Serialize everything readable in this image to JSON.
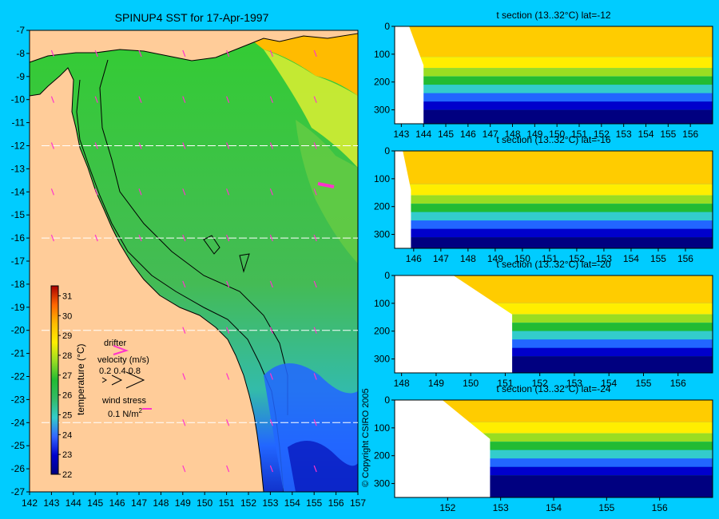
{
  "colors": {
    "background": "#00ccff",
    "land": "#ffcc99",
    "wind_arrow": "#ff33cc",
    "coast": "#000000"
  },
  "main_map": {
    "title": "SPINUP4 SST for 17-Apr-1997",
    "x_ticks": [
      "142",
      "143",
      "144",
      "145",
      "146",
      "147",
      "148",
      "149",
      "150",
      "151",
      "152",
      "153",
      "154",
      "155",
      "156",
      "157"
    ],
    "y_ticks": [
      "-7",
      "-8",
      "-9",
      "-10",
      "-11",
      "-12",
      "-13",
      "-14",
      "-15",
      "-16",
      "-17",
      "-18",
      "-19",
      "-20",
      "-21",
      "-22",
      "-23",
      "-24",
      "-25",
      "-26",
      "-27"
    ],
    "section_lats": [
      -12,
      -16,
      -20,
      -24
    ]
  },
  "colorbar": {
    "label": "temperature (°C)",
    "ticks": [
      "22",
      "23",
      "24",
      "25",
      "26",
      "27",
      "28",
      "29",
      "30",
      "31"
    ]
  },
  "legend": {
    "drifter": "drifter",
    "velocity": "velocity (m/s)",
    "velocity_values": "0.2  0.4  0.8",
    "wind_stress": "wind stress",
    "wind_units_prefix": "0.1 N/m",
    "wind_units_sup": "2"
  },
  "copyright": "© Copyright CSIRO 2005",
  "chart_data": {
    "type": "heatmap",
    "variable": "SST",
    "date": "17-Apr-1997",
    "xlim": [
      142,
      157
    ],
    "ylim": [
      -27,
      -7
    ],
    "colorbar_range": [
      22,
      31.5
    ],
    "sections": [
      {
        "title": "t section (13..32°C) lat=-12",
        "lat": -12,
        "xlim": [
          142.7,
          157
        ],
        "x_ticks": [
          "143",
          "144",
          "145",
          "146",
          "147",
          "148",
          "149",
          "150",
          "151",
          "152",
          "153",
          "154",
          "155",
          "156"
        ],
        "y_ticks": [
          "0",
          "100",
          "200",
          "300"
        ],
        "land_edge_lon": 144.0,
        "thermo_depth": 190
      },
      {
        "title": "t section (13..32°C) lat=-16",
        "lat": -16,
        "xlim": [
          145.3,
          157
        ],
        "x_ticks": [
          "146",
          "147",
          "148",
          "149",
          "150",
          "151",
          "152",
          "153",
          "154",
          "155",
          "156"
        ],
        "y_ticks": [
          "0",
          "100",
          "200",
          "300"
        ],
        "land_edge_lon": 145.9,
        "thermo_depth": 200
      },
      {
        "title": "t section (13..32°C) lat=-20",
        "lat": -20,
        "xlim": [
          147.8,
          157
        ],
        "x_ticks": [
          "148",
          "149",
          "150",
          "151",
          "152",
          "153",
          "154",
          "155",
          "156"
        ],
        "y_ticks": [
          "0",
          "100",
          "200",
          "300"
        ],
        "land_edge_lon": 151.2,
        "thermo_depth": 180
      },
      {
        "title": "t section (13..32°C) lat=-24",
        "lat": -24,
        "xlim": [
          151.0,
          157
        ],
        "x_ticks": [
          "152",
          "153",
          "154",
          "155",
          "156"
        ],
        "y_ticks": [
          "0",
          "100",
          "200",
          "300"
        ],
        "land_edge_lon": 152.8,
        "thermo_depth": 160
      }
    ]
  }
}
